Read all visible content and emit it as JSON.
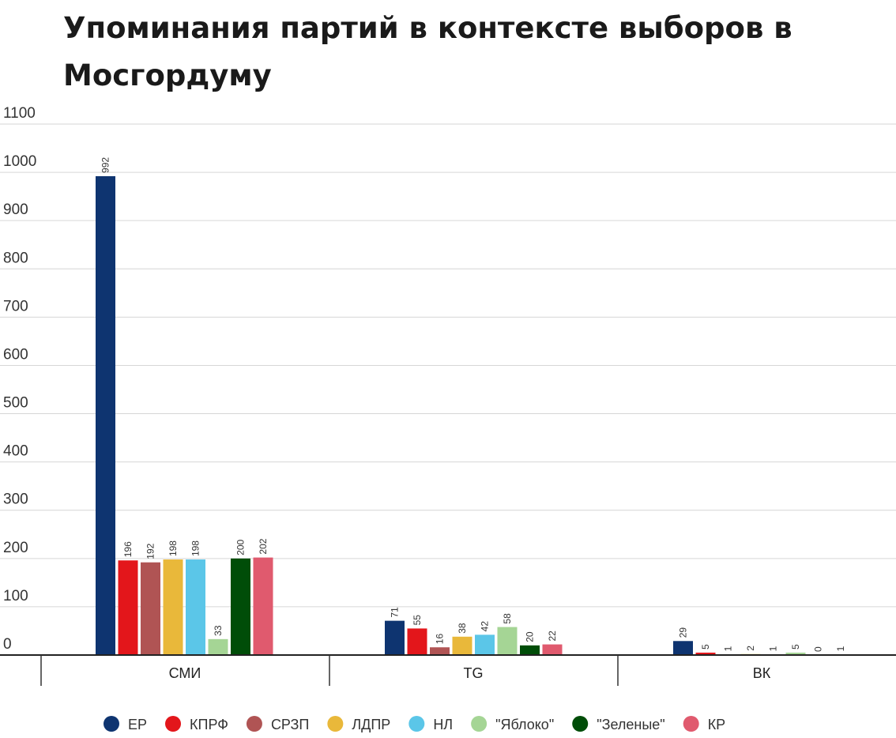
{
  "chart_data": {
    "type": "bar",
    "title": "Упоминания партий в контексте выборов в Мосгордуму",
    "xlabel": "",
    "ylabel": "",
    "ylim": [
      0,
      1100
    ],
    "yticks": [
      0,
      100,
      200,
      300,
      400,
      500,
      600,
      700,
      800,
      900,
      1000,
      1100
    ],
    "grid": true,
    "legend_position": "bottom",
    "categories": [
      "СМИ",
      "TG",
      "ВК"
    ],
    "series": [
      {
        "name": "ЕР",
        "color": "#0e3470",
        "values": [
          992,
          71,
          29
        ]
      },
      {
        "name": "КПРФ",
        "color": "#e3161b",
        "values": [
          196,
          55,
          5
        ]
      },
      {
        "name": "СРЗП",
        "color": "#b05454",
        "values": [
          192,
          16,
          1
        ]
      },
      {
        "name": "ЛДПР",
        "color": "#e9b83a",
        "values": [
          198,
          38,
          2
        ]
      },
      {
        "name": "НЛ",
        "color": "#5bc6e8",
        "values": [
          198,
          42,
          1
        ]
      },
      {
        "name": "\"Яблоко\"",
        "color": "#a5d595",
        "values": [
          33,
          58,
          5
        ]
      },
      {
        "name": "\"Зеленые\"",
        "color": "#004d08",
        "values": [
          200,
          20,
          0
        ]
      },
      {
        "name": "КР",
        "color": "#e05a6e",
        "values": [
          202,
          22,
          1
        ]
      }
    ]
  }
}
